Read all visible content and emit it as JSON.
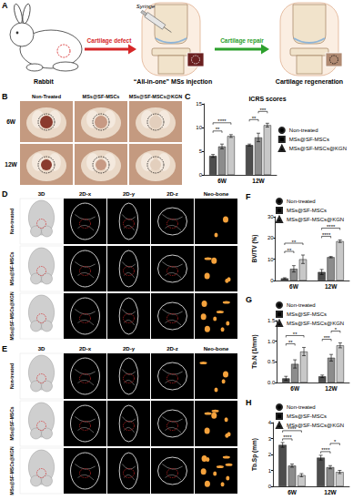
{
  "figure": {
    "panel_labels": [
      "A",
      "B",
      "C",
      "D",
      "E",
      "F",
      "G",
      "H"
    ],
    "schematic": {
      "subject": "Rabbit",
      "step1": "Cartilage defect",
      "tool": "Syringe",
      "step2": "“All-in-one” MSs injection",
      "step3": "Cartilage repair",
      "step4": "Cartilage regeneration"
    },
    "photos": {
      "columns": [
        "Non-Treated",
        "MSs@SF-MSCs",
        "MSs@SF-MSCs@KGN"
      ],
      "rows": [
        "6W",
        "12W"
      ]
    },
    "microct": {
      "columns": [
        "3D",
        "2D-x",
        "2D-y",
        "2D-z",
        "Neo-bone"
      ],
      "rows": [
        "Non-treated",
        "MSs@SF-MSCs",
        "MSs@SF-MSCs@KGN"
      ]
    }
  },
  "chart_data": [
    {
      "type": "bar",
      "title": "ICRS scores",
      "categories": [
        "6W",
        "12W"
      ],
      "series": [
        {
          "name": "Non-treated",
          "color": "#4d4d4d",
          "marker": "circle",
          "values": [
            4.0,
            6.3
          ],
          "errors": [
            0.3,
            0.2
          ]
        },
        {
          "name": "MSs@SF-MSCs",
          "color": "#8c8c8c",
          "marker": "square",
          "values": [
            6.0,
            7.9
          ],
          "errors": [
            0.5,
            0.9
          ]
        },
        {
          "name": "MSs@SF-MSCs@KGN",
          "color": "#c8c8c8",
          "marker": "triangle",
          "values": [
            8.2,
            10.5
          ],
          "errors": [
            0.3,
            0.4
          ]
        }
      ],
      "ylim": [
        0,
        15
      ],
      "yticks": [
        0,
        5,
        10,
        15
      ],
      "grid": false,
      "legend": "right",
      "annotations": [
        {
          "category": "6W",
          "from": "Non-treated",
          "to": "MSs@SF-MSCs",
          "label": "**"
        },
        {
          "category": "6W",
          "from": "Non-treated",
          "to": "MSs@SF-MSCs@KGN",
          "label": "****"
        },
        {
          "category": "12W",
          "from": "Non-treated",
          "to": "MSs@SF-MSCs",
          "label": "**"
        },
        {
          "category": "12W",
          "from": "MSs@SF-MSCs",
          "to": "MSs@SF-MSCs@KGN",
          "label": "***"
        }
      ]
    },
    {
      "type": "bar",
      "y_label": "BV/TV (%)",
      "categories": [
        "6W",
        "12W"
      ],
      "series": [
        {
          "name": "Non-treated",
          "color": "#4d4d4d",
          "marker": "circle",
          "values": [
            1.0,
            4.0
          ],
          "errors": [
            0.3,
            1.2
          ]
        },
        {
          "name": "MSs@SF-MSCs",
          "color": "#8c8c8c",
          "marker": "square",
          "values": [
            5.5,
            11.0
          ],
          "errors": [
            1.5,
            0.3
          ]
        },
        {
          "name": "MSs@SF-MSCs@KGN",
          "color": "#c8c8c8",
          "marker": "triangle",
          "values": [
            10.0,
            18.5
          ],
          "errors": [
            2.0,
            0.6
          ]
        }
      ],
      "ylim": [
        0,
        30
      ],
      "yticks": [
        0,
        10,
        20,
        30
      ],
      "grid": false,
      "legend": "top-left",
      "annotations": [
        {
          "category": "6W",
          "from": "Non-treated",
          "to": "MSs@SF-MSCs",
          "label": "**"
        },
        {
          "category": "6W",
          "from": "Non-treated",
          "to": "MSs@SF-MSCs@KGN",
          "label": "**"
        },
        {
          "category": "12W",
          "from": "Non-treated",
          "to": "MSs@SF-MSCs",
          "label": "****"
        },
        {
          "category": "12W",
          "from": "Non-treated",
          "to": "MSs@SF-MSCs@KGN",
          "label": "****"
        }
      ]
    },
    {
      "type": "bar",
      "y_label": "Tb.N (1/mm)",
      "categories": [
        "6W",
        "12W"
      ],
      "series": [
        {
          "name": "Non-treated",
          "color": "#4d4d4d",
          "marker": "circle",
          "values": [
            0.1,
            0.15
          ],
          "errors": [
            0.05,
            0.03
          ]
        },
        {
          "name": "MSs@SF-MSCs",
          "color": "#8c8c8c",
          "marker": "square",
          "values": [
            0.45,
            0.6
          ],
          "errors": [
            0.1,
            0.08
          ]
        },
        {
          "name": "MSs@SF-MSCs@KGN",
          "color": "#c8c8c8",
          "marker": "triangle",
          "values": [
            0.75,
            0.9
          ],
          "errors": [
            0.1,
            0.06
          ]
        }
      ],
      "ylim": [
        0,
        1.5
      ],
      "yticks": [
        {
          "value": 0,
          "label": "0.0"
        },
        0.5,
        {
          "value": 1,
          "label": "1.0"
        },
        1.5
      ],
      "grid": false,
      "legend": "top-left",
      "annotations": [
        {
          "category": "6W",
          "from": "Non-treated",
          "to": "MSs@SF-MSCs",
          "label": "**"
        },
        {
          "category": "6W",
          "from": "Non-treated",
          "to": "MSs@SF-MSCs@KGN",
          "label": "**"
        },
        {
          "category": "12W",
          "from": "Non-treated",
          "to": "MSs@SF-MSCs",
          "label": "***"
        },
        {
          "category": "12W",
          "from": "MSs@SF-MSCs",
          "to": "MSs@SF-MSCs@KGN",
          "label": "*"
        }
      ]
    },
    {
      "type": "bar",
      "y_label": "Tb.Sp (mm)",
      "categories": [
        "6W",
        "12W"
      ],
      "series": [
        {
          "name": "Non-treated",
          "color": "#4d4d4d",
          "marker": "circle",
          "values": [
            2.6,
            1.8
          ],
          "errors": [
            0.15,
            0.15
          ]
        },
        {
          "name": "MSs@SF-MSCs",
          "color": "#8c8c8c",
          "marker": "square",
          "values": [
            1.3,
            1.2
          ],
          "errors": [
            0.1,
            0.1
          ]
        },
        {
          "name": "MSs@SF-MSCs@KGN",
          "color": "#c8c8c8",
          "marker": "triangle",
          "values": [
            0.7,
            0.9
          ],
          "errors": [
            0.1,
            0.1
          ]
        }
      ],
      "ylim": [
        0,
        4
      ],
      "yticks": [
        0,
        1,
        2,
        3,
        4
      ],
      "grid": false,
      "legend": "top-left",
      "annotations": [
        {
          "category": "6W",
          "from": "Non-treated",
          "to": "MSs@SF-MSCs",
          "label": "****"
        },
        {
          "category": "6W",
          "from": "Non-treated",
          "to": "MSs@SF-MSCs@KGN",
          "label": "****"
        },
        {
          "category": "12W",
          "from": "Non-treated",
          "to": "MSs@SF-MSCs",
          "label": "****"
        },
        {
          "category": "12W",
          "from": "MSs@SF-MSCs",
          "to": "MSs@SF-MSCs@KGN",
          "label": "*"
        }
      ]
    }
  ]
}
